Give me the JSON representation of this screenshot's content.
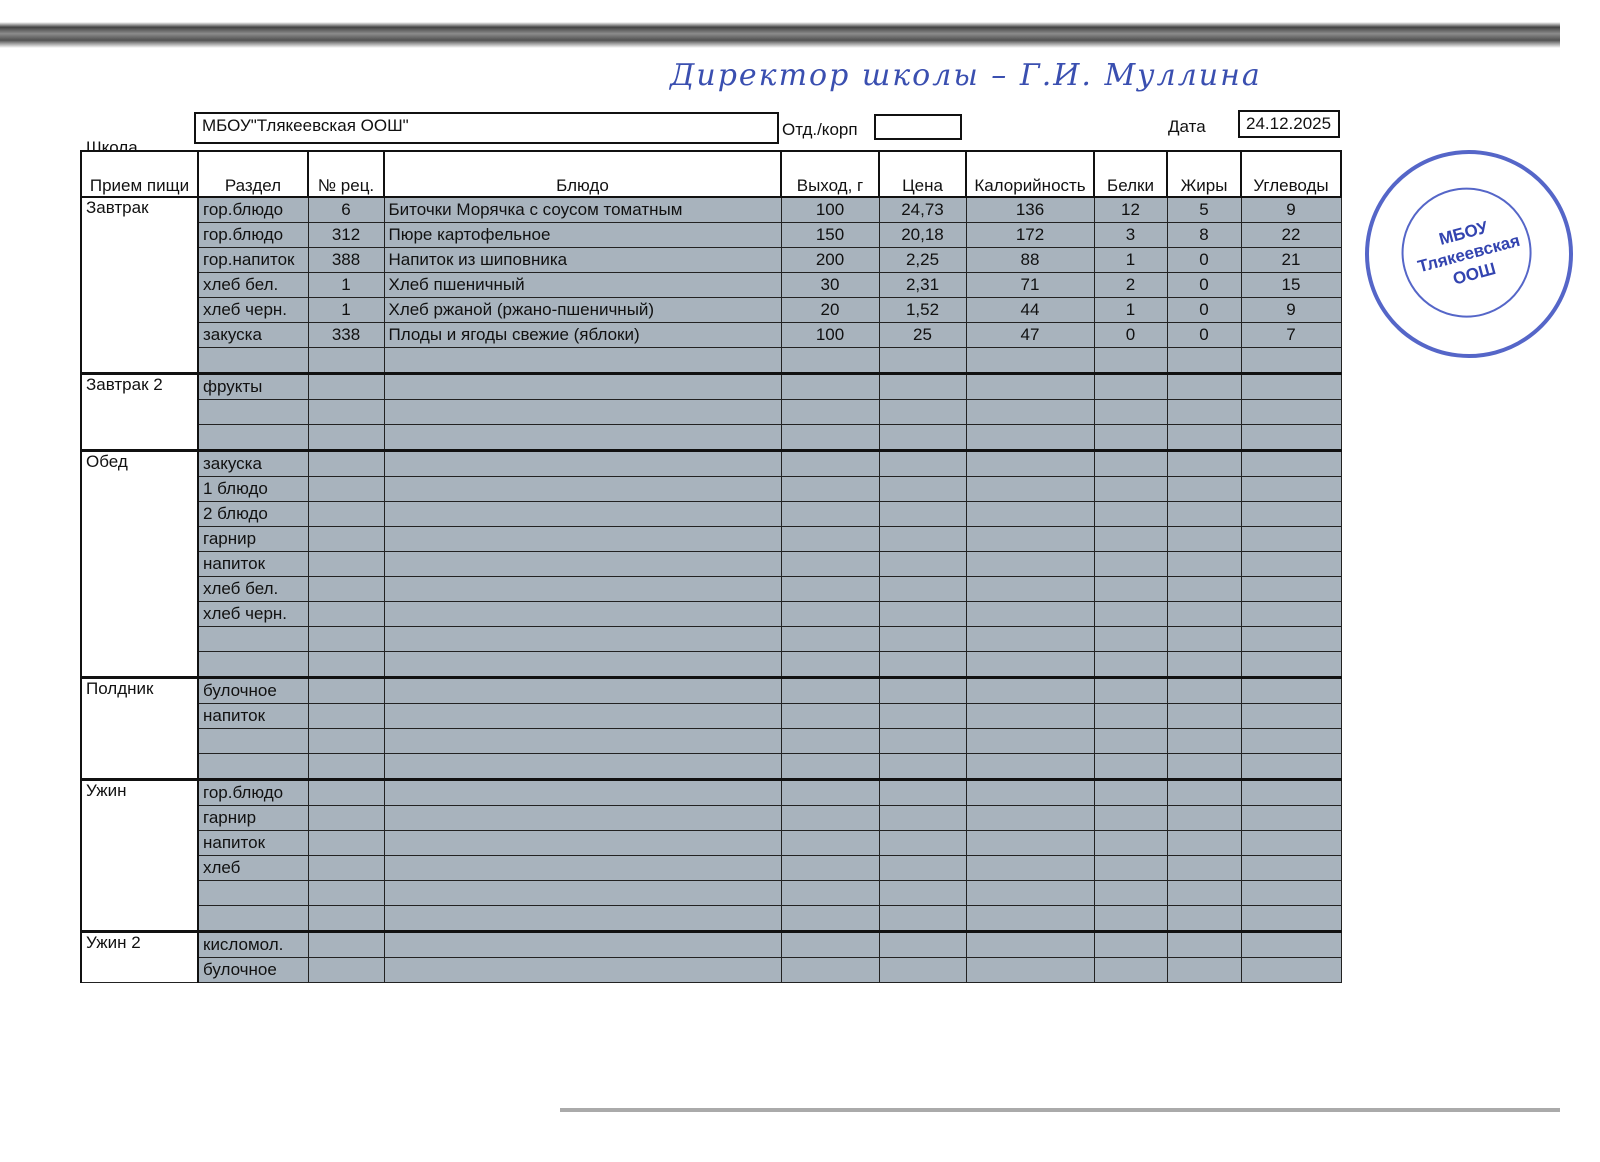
{
  "header": {
    "school_label": "Школа",
    "school_value": "МБОУ\"Тлякеевская ООШ\"",
    "dept_label": "Отд./корп",
    "dept_value": "",
    "date_label": "Дата",
    "date_value": "24.12.2025"
  },
  "signature": {
    "text": "Директор школы — Г.И. Муллина"
  },
  "stamp": {
    "text": "МБОУ Тлякеевская ООШ"
  },
  "columns": [
    "Прием пищи",
    "Раздел",
    "№ рец.",
    "Блюдо",
    "Выход, г",
    "Цена",
    "Калорийность",
    "Белки",
    "Жиры",
    "Углеводы"
  ],
  "meals": [
    {
      "name": "Завтрак",
      "rows": [
        [
          "гор.блюдо",
          "6",
          "Биточки Морячка с соусом томатным",
          "100",
          "24,73",
          "136",
          "12",
          "5",
          "9"
        ],
        [
          "гор.блюдо",
          "312",
          "Пюре картофельное",
          "150",
          "20,18",
          "172",
          "3",
          "8",
          "22"
        ],
        [
          "гор.напиток",
          "388",
          "Напиток из шиповника",
          "200",
          "2,25",
          "88",
          "1",
          "0",
          "21"
        ],
        [
          "хлеб бел.",
          "1",
          "Хлеб пшеничный",
          "30",
          "2,31",
          "71",
          "2",
          "0",
          "15"
        ],
        [
          "хлеб черн.",
          "1",
          "Хлеб ржаной (ржано-пшеничный)",
          "20",
          "1,52",
          "44",
          "1",
          "0",
          "9"
        ],
        [
          "закуска",
          "338",
          "Плоды и ягоды свежие (яблоки)",
          "100",
          "25",
          "47",
          "0",
          "0",
          "7"
        ],
        [
          "",
          "",
          "",
          "",
          "",
          "",
          "",
          "",
          ""
        ]
      ]
    },
    {
      "name": "Завтрак 2",
      "rows": [
        [
          "фрукты",
          "",
          "",
          "",
          "",
          "",
          "",
          "",
          ""
        ],
        [
          "",
          "",
          "",
          "",
          "",
          "",
          "",
          "",
          ""
        ],
        [
          "",
          "",
          "",
          "",
          "",
          "",
          "",
          "",
          ""
        ]
      ]
    },
    {
      "name": "Обед",
      "rows": [
        [
          "закуска",
          "",
          "",
          "",
          "",
          "",
          "",
          "",
          ""
        ],
        [
          "1 блюдо",
          "",
          "",
          "",
          "",
          "",
          "",
          "",
          ""
        ],
        [
          "2 блюдо",
          "",
          "",
          "",
          "",
          "",
          "",
          "",
          ""
        ],
        [
          "гарнир",
          "",
          "",
          "",
          "",
          "",
          "",
          "",
          ""
        ],
        [
          "напиток",
          "",
          "",
          "",
          "",
          "",
          "",
          "",
          ""
        ],
        [
          "хлеб бел.",
          "",
          "",
          "",
          "",
          "",
          "",
          "",
          ""
        ],
        [
          "хлеб черн.",
          "",
          "",
          "",
          "",
          "",
          "",
          "",
          ""
        ],
        [
          "",
          "",
          "",
          "",
          "",
          "",
          "",
          "",
          ""
        ],
        [
          "",
          "",
          "",
          "",
          "",
          "",
          "",
          "",
          ""
        ]
      ]
    },
    {
      "name": "Полдник",
      "rows": [
        [
          "булочное",
          "",
          "",
          "",
          "",
          "",
          "",
          "",
          ""
        ],
        [
          "напиток",
          "",
          "",
          "",
          "",
          "",
          "",
          "",
          ""
        ],
        [
          "",
          "",
          "",
          "",
          "",
          "",
          "",
          "",
          ""
        ],
        [
          "",
          "",
          "",
          "",
          "",
          "",
          "",
          "",
          ""
        ]
      ]
    },
    {
      "name": "Ужин",
      "rows": [
        [
          "гор.блюдо",
          "",
          "",
          "",
          "",
          "",
          "",
          "",
          ""
        ],
        [
          "гарнир",
          "",
          "",
          "",
          "",
          "",
          "",
          "",
          ""
        ],
        [
          "напиток",
          "",
          "",
          "",
          "",
          "",
          "",
          "",
          ""
        ],
        [
          "хлеб",
          "",
          "",
          "",
          "",
          "",
          "",
          "",
          ""
        ],
        [
          "",
          "",
          "",
          "",
          "",
          "",
          "",
          "",
          ""
        ],
        [
          "",
          "",
          "",
          "",
          "",
          "",
          "",
          "",
          ""
        ]
      ]
    },
    {
      "name": "Ужин 2",
      "rows": [
        [
          "кисломол.",
          "",
          "",
          "",
          "",
          "",
          "",
          "",
          ""
        ],
        [
          "булочное",
          "",
          "",
          "",
          "",
          "",
          "",
          "",
          ""
        ]
      ]
    }
  ],
  "colors": {
    "cell_fill": "#a8b3bd",
    "ink_blue": "#3a4fb0"
  }
}
